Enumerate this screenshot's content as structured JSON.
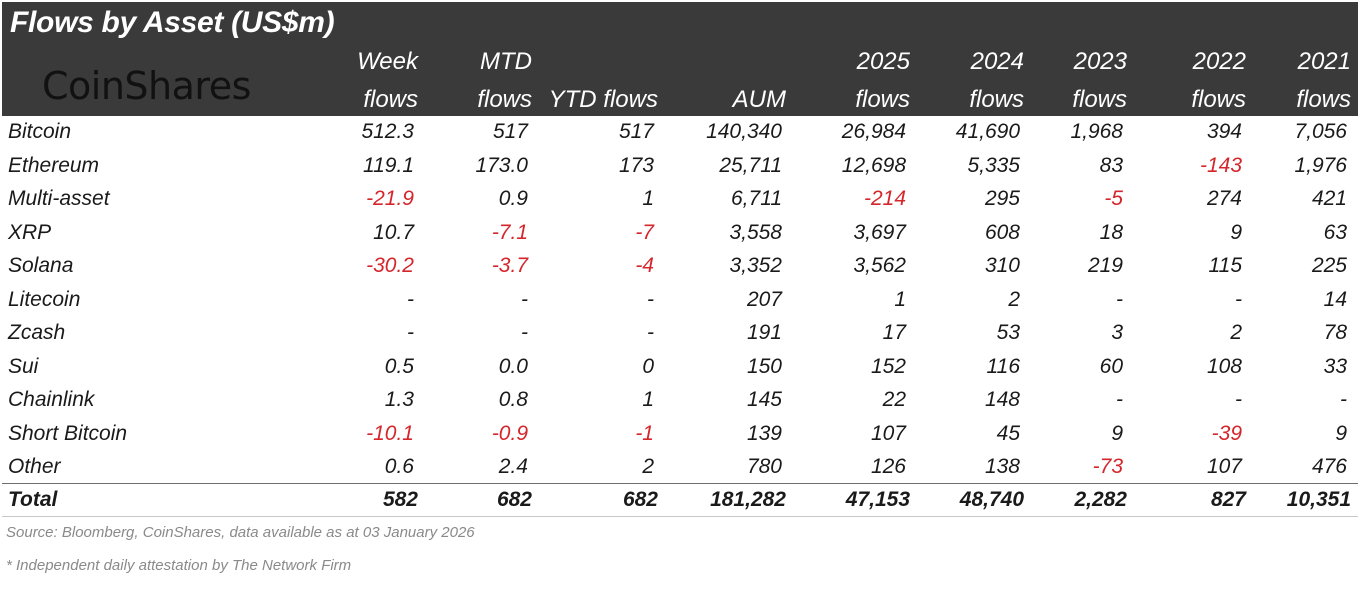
{
  "title": "Flows by Asset (US$m)",
  "logo_text": "CoinShares",
  "columns": [
    {
      "line1": "Week",
      "line2": "flows"
    },
    {
      "line1": "MTD",
      "line2": "flows"
    },
    {
      "line1": "",
      "line2": "YTD flows"
    },
    {
      "line1": "",
      "line2": "AUM"
    },
    {
      "line1": "2025",
      "line2": "flows"
    },
    {
      "line1": "2024",
      "line2": "flows"
    },
    {
      "line1": "2023",
      "line2": "flows"
    },
    {
      "line1": "2022",
      "line2": "flows"
    },
    {
      "line1": "2021",
      "line2": "flows"
    }
  ],
  "chart_data": {
    "type": "table",
    "title": "Flows by Asset (US$m)",
    "columns": [
      "Week flows",
      "MTD flows",
      "YTD flows",
      "AUM",
      "2025 flows",
      "2024 flows",
      "2023 flows",
      "2022 flows",
      "2021 flows"
    ],
    "rows": [
      {
        "name": "Bitcoin",
        "values": [
          "512.3",
          "517",
          "517",
          "140,340",
          "26,984",
          "41,690",
          "1,968",
          "394",
          "7,056"
        ]
      },
      {
        "name": "Ethereum",
        "values": [
          "119.1",
          "173.0",
          "173",
          "25,711",
          "12,698",
          "5,335",
          "83",
          "-143",
          "1,976"
        ]
      },
      {
        "name": "Multi-asset",
        "values": [
          "-21.9",
          "0.9",
          "1",
          "6,711",
          "-214",
          "295",
          "-5",
          "274",
          "421"
        ]
      },
      {
        "name": "XRP",
        "values": [
          "10.7",
          "-7.1",
          "-7",
          "3,558",
          "3,697",
          "608",
          "18",
          "9",
          "63"
        ]
      },
      {
        "name": "Solana",
        "values": [
          "-30.2",
          "-3.7",
          "-4",
          "3,352",
          "3,562",
          "310",
          "219",
          "115",
          "225"
        ]
      },
      {
        "name": "Litecoin",
        "values": [
          "-",
          "-",
          "-",
          "207",
          "1",
          "2",
          "-",
          "-",
          "14"
        ]
      },
      {
        "name": "Zcash",
        "values": [
          "-",
          "-",
          "-",
          "191",
          "17",
          "53",
          "3",
          "2",
          "78"
        ]
      },
      {
        "name": "Sui",
        "values": [
          "0.5",
          "0.0",
          "0",
          "150",
          "152",
          "116",
          "60",
          "108",
          "33"
        ]
      },
      {
        "name": "Chainlink",
        "values": [
          "1.3",
          "0.8",
          "1",
          "145",
          "22",
          "148",
          "-",
          "-",
          "-"
        ]
      },
      {
        "name": "Short Bitcoin",
        "values": [
          "-10.1",
          "-0.9",
          "-1",
          "139",
          "107",
          "45",
          "9",
          "-39",
          "9"
        ]
      },
      {
        "name": "Other",
        "values": [
          "0.6",
          "2.4",
          "2",
          "780",
          "126",
          "138",
          "-73",
          "107",
          "476"
        ]
      }
    ],
    "total": {
      "name": "Total",
      "values": [
        "582",
        "682",
        "682",
        "181,282",
        "47,153",
        "48,740",
        "2,282",
        "827",
        "10,351"
      ]
    }
  },
  "source_note": "Source: Bloomberg, CoinShares, data available as at 03 January 2026",
  "footnote": "* Independent daily attestation by The Network Firm",
  "colors": {
    "header_bg": "#3a3a3a",
    "negative": "#d4262b",
    "note": "#8a8a8a"
  }
}
